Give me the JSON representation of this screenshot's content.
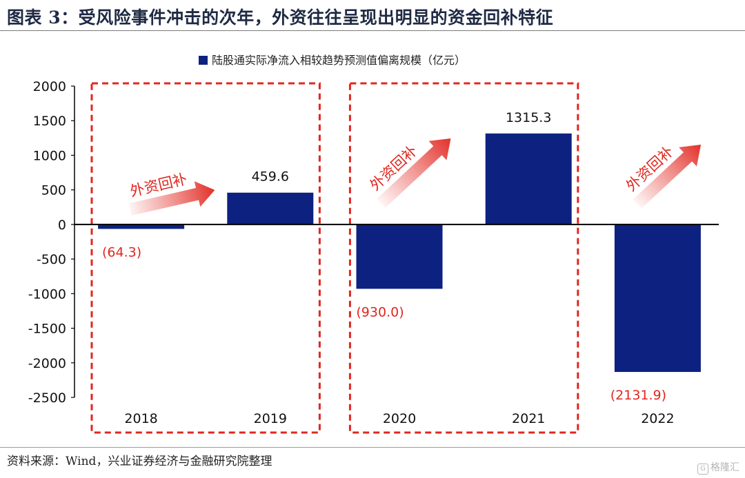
{
  "header": {
    "title": "图表 3：受风险事件冲击的次年，外资往往呈现出明显的资金回补特征"
  },
  "footer": {
    "source": "资料来源：Wind，兴业证券经济与金融研究院整理",
    "watermark": "格隆汇"
  },
  "annotation_label": "外资回补",
  "colors": {
    "bar": "#0d2180",
    "negative_label": "#e0261f",
    "highlight_box": "#e0261f",
    "arrow": "#e3312a"
  },
  "chart_data": {
    "type": "bar",
    "categories": [
      "2018",
      "2019",
      "2020",
      "2021",
      "2022"
    ],
    "series": [
      {
        "name": "陆股通实际净流入相较趋势预测值偏离规模（亿元）",
        "values": [
          -64.3,
          459.6,
          -930.0,
          1315.3,
          -2131.9
        ]
      }
    ],
    "data_labels": [
      "(64.3)",
      "459.6",
      "(930.0)",
      "1315.3",
      "(2131.9)"
    ],
    "y_ticks": [
      "2000",
      "1500",
      "1000",
      "500",
      "0",
      "-500",
      "-1000",
      "-1500",
      "-2000",
      "-2500"
    ],
    "ylim": [
      -2500,
      2000
    ],
    "xlabel": "",
    "ylabel": "",
    "legend_position": "top-center",
    "grid": false,
    "highlight_groups": [
      [
        "2018",
        "2019"
      ],
      [
        "2020",
        "2021"
      ]
    ],
    "annotations": [
      "外资回补",
      "外资回补",
      "外资回补"
    ]
  }
}
